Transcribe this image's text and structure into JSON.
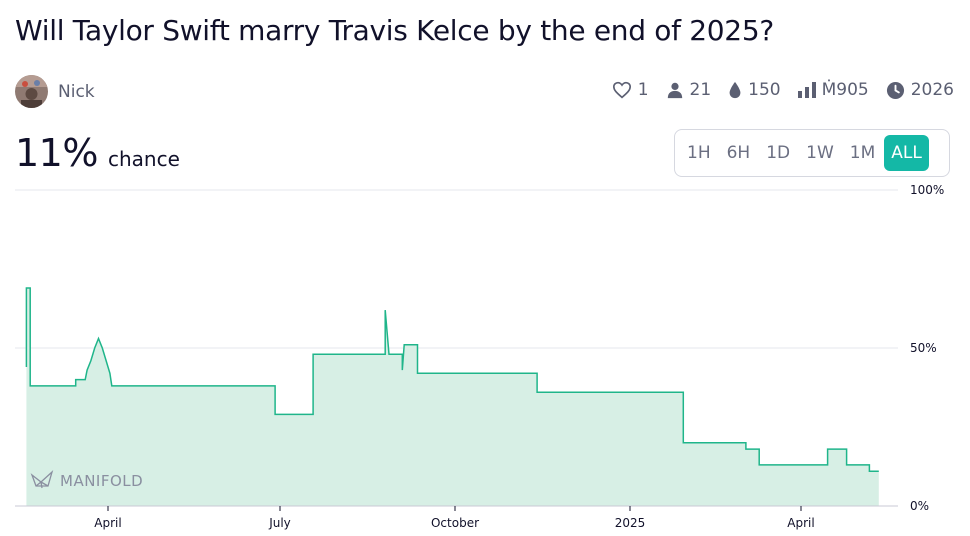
{
  "question": {
    "title": "Will Taylor Swift marry Travis Kelce by the end of 2025?"
  },
  "author": {
    "name": "Nick"
  },
  "stats": {
    "likes": "1",
    "traders": "21",
    "liquidity": "150",
    "volume": "Ṁ905",
    "close": "2026"
  },
  "probability": {
    "value": "11%",
    "label": "chance"
  },
  "time_ranges": [
    "1H",
    "6H",
    "1D",
    "1W",
    "1M",
    "ALL"
  ],
  "active_range": "ALL",
  "watermark": "MANIFOLD",
  "colors": {
    "accent": "#14b8a6",
    "line": "#1fb58a",
    "fill": "#d7efe5"
  },
  "chart_data": {
    "type": "area",
    "step": true,
    "x_ticks": [
      "April",
      "July",
      "October",
      "2025",
      "April"
    ],
    "y_ticks": [
      "100%",
      "50%",
      "0%"
    ],
    "ylim": [
      0,
      100
    ],
    "grid": true,
    "points": [
      [
        "2024-02-18",
        44
      ],
      [
        "2024-02-18",
        69
      ],
      [
        "2024-02-20",
        69
      ],
      [
        "2024-02-20",
        38
      ],
      [
        "2024-03-15",
        38
      ],
      [
        "2024-03-15",
        40
      ],
      [
        "2024-03-20",
        40
      ],
      [
        "2024-03-21",
        43
      ],
      [
        "2024-03-23",
        46
      ],
      [
        "2024-03-25",
        50
      ],
      [
        "2024-03-27",
        53
      ],
      [
        "2024-03-29",
        50
      ],
      [
        "2024-03-31",
        46
      ],
      [
        "2024-04-02",
        42
      ],
      [
        "2024-04-03",
        38
      ],
      [
        "2024-06-28",
        38
      ],
      [
        "2024-06-28",
        29
      ],
      [
        "2024-07-18",
        29
      ],
      [
        "2024-07-18",
        48
      ],
      [
        "2024-08-25",
        48
      ],
      [
        "2024-08-25",
        62
      ],
      [
        "2024-08-26",
        55
      ],
      [
        "2024-08-27",
        48
      ],
      [
        "2024-09-03",
        48
      ],
      [
        "2024-09-03",
        43
      ],
      [
        "2024-09-04",
        51
      ],
      [
        "2024-09-11",
        51
      ],
      [
        "2024-09-11",
        42
      ],
      [
        "2024-11-13",
        42
      ],
      [
        "2024-11-13",
        36
      ],
      [
        "2025-01-29",
        36
      ],
      [
        "2025-01-29",
        20
      ],
      [
        "2025-03-03",
        20
      ],
      [
        "2025-03-03",
        18
      ],
      [
        "2025-03-10",
        18
      ],
      [
        "2025-03-10",
        13
      ],
      [
        "2025-04-15",
        13
      ],
      [
        "2025-04-15",
        18
      ],
      [
        "2025-04-25",
        18
      ],
      [
        "2025-04-25",
        13
      ],
      [
        "2025-05-07",
        13
      ],
      [
        "2025-05-07",
        11
      ],
      [
        "2025-05-12",
        11
      ]
    ]
  }
}
